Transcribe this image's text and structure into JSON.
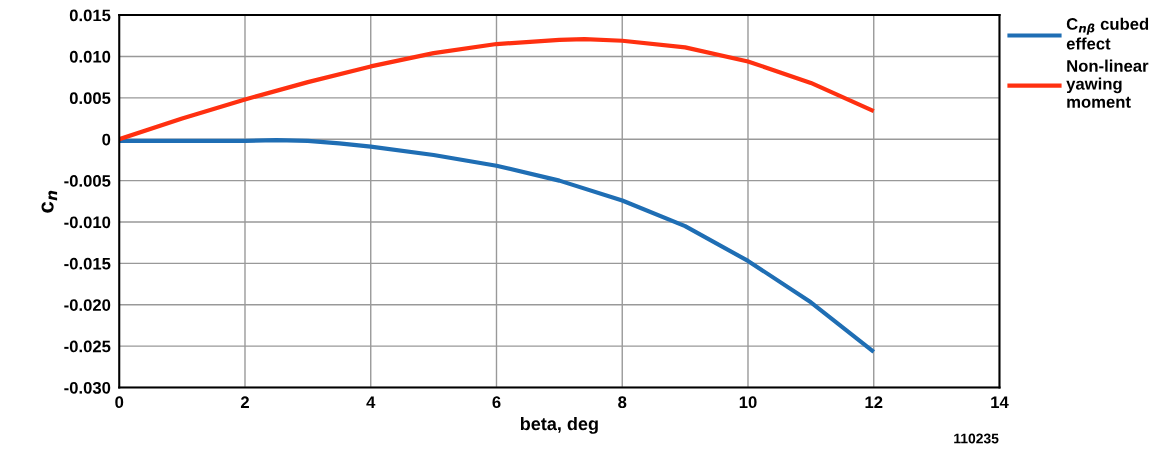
{
  "chart_data": {
    "type": "line",
    "xlabel": "beta, deg",
    "ylabel": "c$_{n}$",
    "xlim": [
      0,
      14
    ],
    "xticks": [
      0,
      2,
      4,
      6,
      8,
      10,
      12,
      14
    ],
    "ylim": [
      -0.03,
      0.015
    ],
    "yticks": [
      {
        "value": -0.03,
        "label": "-0.030"
      },
      {
        "value": -0.025,
        "label": "-0.025"
      },
      {
        "value": -0.02,
        "label": "-0.020"
      },
      {
        "value": -0.015,
        "label": "-0.015"
      },
      {
        "value": -0.01,
        "label": "-0.010"
      },
      {
        "value": -0.005,
        "label": "-0.005"
      },
      {
        "value": 0,
        "label": "0"
      },
      {
        "value": 0.005,
        "label": "0.005"
      },
      {
        "value": 0.01,
        "label": "0.010"
      },
      {
        "value": 0.015,
        "label": "0.015"
      }
    ],
    "grid": true,
    "legend": "top right",
    "marker": "none",
    "line_style": "solid",
    "annotations": [
      "110235"
    ],
    "series": [
      {
        "name": "C$_{nβ}$ cubed\neffect",
        "color": "#1f6eb4",
        "x": [
          0,
          1,
          2,
          2.5,
          3,
          3.5,
          4,
          5,
          6,
          7,
          8,
          9,
          10,
          11,
          12
        ],
        "values": [
          -0.0002,
          -0.0002,
          -0.0002,
          -0.0001,
          -0.0002,
          -0.0005,
          -0.0009,
          -0.0019,
          -0.0032,
          -0.005,
          -0.0074,
          -0.0105,
          -0.0147,
          -0.0197,
          -0.0257
        ]
      },
      {
        "name": "Non-linear\nyawing\nmoment",
        "color": "#ff3010",
        "x": [
          0,
          1,
          2,
          3,
          4,
          5,
          6,
          7,
          7.4,
          8,
          9,
          10,
          11,
          12
        ],
        "values": [
          0,
          0.0025,
          0.0048,
          0.0069,
          0.0088,
          0.0104,
          0.0115,
          0.012,
          0.0121,
          0.0119,
          0.0111,
          0.0094,
          0.0068,
          0.0034
        ]
      }
    ]
  }
}
